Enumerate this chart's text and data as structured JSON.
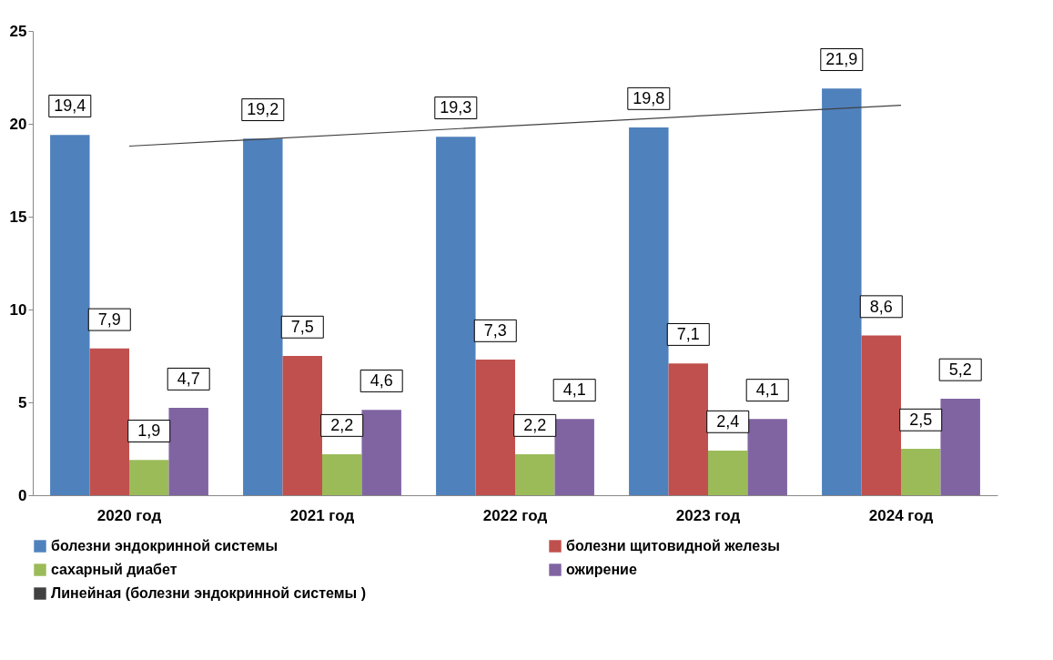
{
  "chart_data": {
    "type": "bar",
    "categories": [
      "2020 год",
      "2021 год",
      "2022 год",
      "2023 год",
      "2024 год"
    ],
    "series": [
      {
        "name": "болезни эндокринной системы",
        "color": "#4f81bd",
        "values": [
          19.4,
          19.2,
          19.3,
          19.8,
          21.9
        ],
        "value_labels": [
          "19,4",
          "19,2",
          "19,3",
          "19,8",
          "21,9"
        ]
      },
      {
        "name": "болезни щитовидной железы",
        "color": "#c0504d",
        "values": [
          7.9,
          7.5,
          7.3,
          7.1,
          8.6
        ],
        "value_labels": [
          "7,9",
          "7,5",
          "7,3",
          "7,1",
          "8,6"
        ]
      },
      {
        "name": "сахарный диабет",
        "color": "#9bbb59",
        "values": [
          1.9,
          2.2,
          2.2,
          2.4,
          2.5
        ],
        "value_labels": [
          "1,9",
          "2,2",
          "2,2",
          "2,4",
          "2,5"
        ]
      },
      {
        "name": "ожирение",
        "color": "#8064a2",
        "values": [
          4.7,
          4.6,
          4.1,
          4.1,
          5.2
        ],
        "value_labels": [
          "4,7",
          "4,6",
          "4,1",
          "4,1",
          "5,2"
        ]
      },
      {
        "name": "Линейная (болезни эндокринной системы )",
        "type": "line",
        "color": "#404040",
        "x": [
          "2020 год",
          "2024 год"
        ],
        "values": [
          18.8,
          21.0
        ]
      }
    ],
    "ylim": [
      0,
      25
    ],
    "yticks": [
      0,
      5,
      10,
      15,
      20,
      25
    ],
    "grid": false,
    "legend": "bottom"
  }
}
